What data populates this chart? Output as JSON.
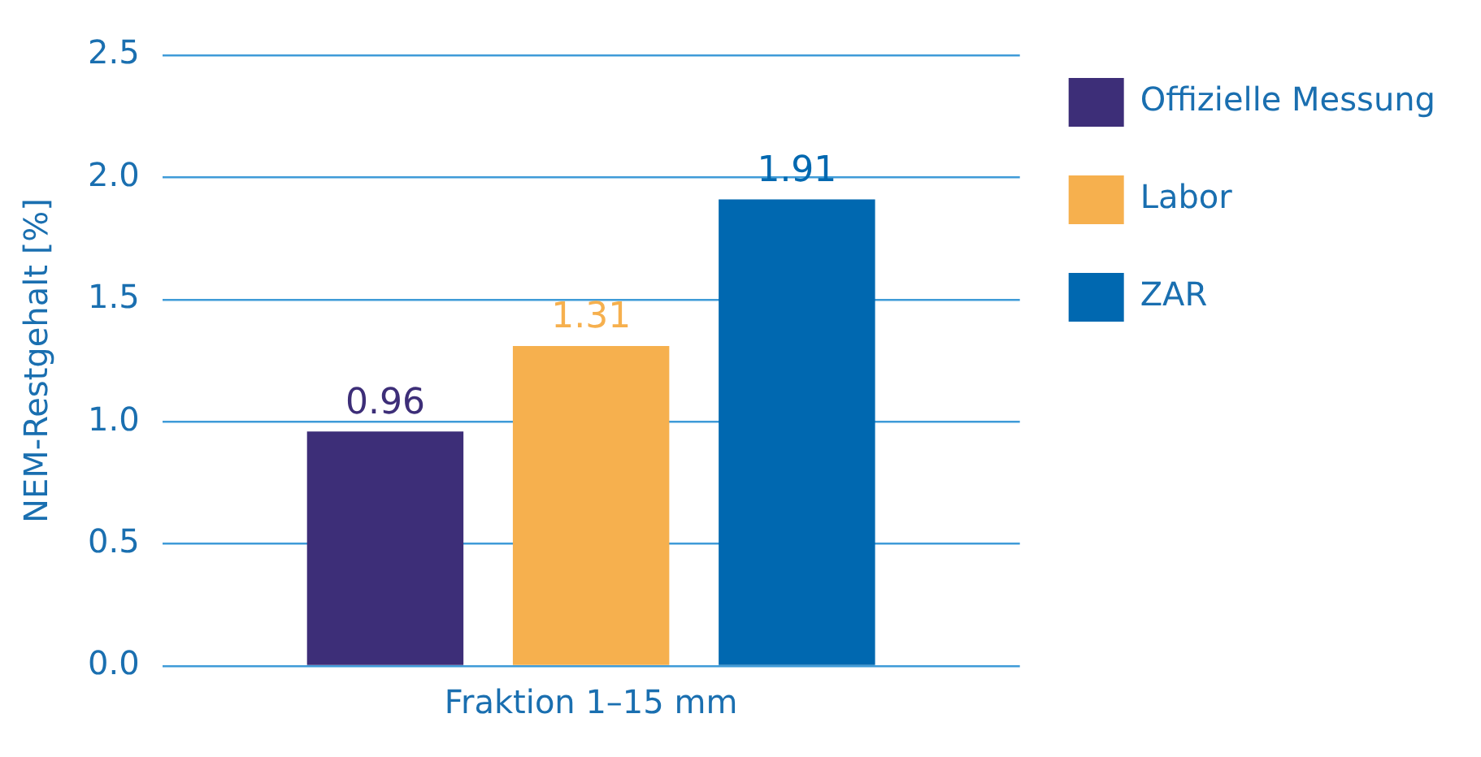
{
  "chart_data": {
    "type": "bar",
    "ylabel": "NEM-Restgehalt [%]",
    "categories": [
      "Fraktion 1–15 mm"
    ],
    "series": [
      {
        "name": "Offizielle Messung",
        "color": "#3d2e78",
        "values": [
          0.96
        ]
      },
      {
        "name": "Labor",
        "color": "#f6b04e",
        "values": [
          1.31
        ]
      },
      {
        "name": "ZAR",
        "color": "#0068b0",
        "values": [
          1.91
        ]
      }
    ],
    "ylim": [
      0,
      2.5
    ],
    "yticks": [
      {
        "value": 0,
        "label": "0.0"
      },
      {
        "value": 0.5,
        "label": "0.5"
      },
      {
        "value": 1,
        "label": "1.0"
      },
      {
        "value": 1.5,
        "label": "1.5"
      },
      {
        "value": 2,
        "label": "2.0"
      },
      {
        "value": 2.5,
        "label": "2.5"
      }
    ],
    "grid": "y",
    "legend": "right",
    "data_labels": true
  }
}
